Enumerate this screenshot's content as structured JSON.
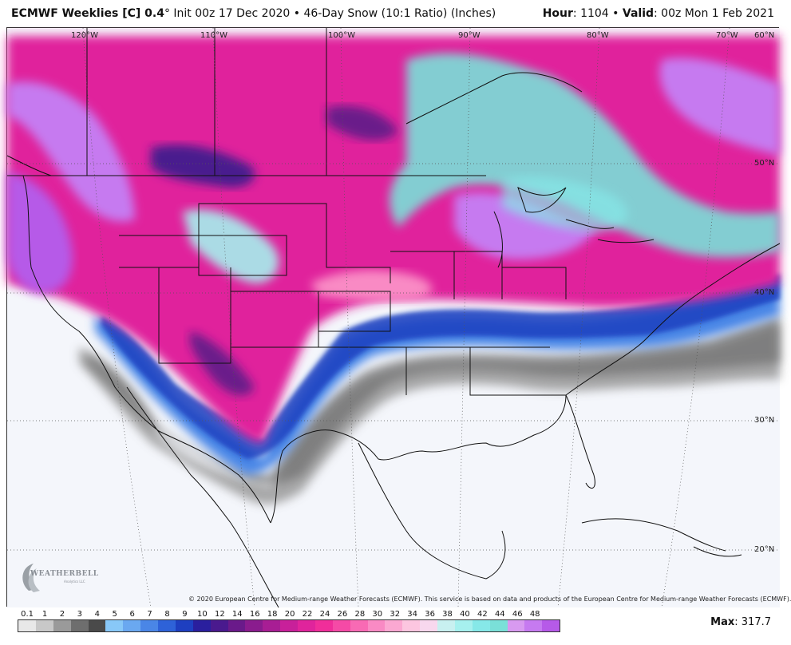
{
  "header": {
    "model": "ECMWF Weeklies [C] 0.4",
    "degree": "°",
    "init": " Init 00z 17 Dec 2020 • 46-Day Snow (10:1 Ratio) (Inches)",
    "hour_label": "Hour",
    "hour_value": ": 1104 • ",
    "valid_label": "Valid",
    "valid_value": ": 00z Mon 1 Feb 2021"
  },
  "longitude_labels": [
    "120°W",
    "110°W",
    "100°W",
    "90°W",
    "80°W",
    "70°W"
  ],
  "latitude_labels": [
    "60°N",
    "50°N",
    "40°N",
    "30°N",
    "20°N"
  ],
  "copyright": "© 2020 European Centre for Medium-range Weather Forecasts (ECMWF). This service is based on data and products of the European Centre for Medium-range Weather Forecasts (ECMWF).",
  "logo": {
    "text": "WEATHERBELL",
    "sub": "Analytics LLC"
  },
  "colorbar": {
    "labels": [
      "0.1",
      "1",
      "2",
      "3",
      "4",
      "5",
      "6",
      "7",
      "8",
      "9",
      "10",
      "12",
      "14",
      "16",
      "18",
      "20",
      "22",
      "24",
      "26",
      "28",
      "30",
      "32",
      "34",
      "36",
      "38",
      "40",
      "42",
      "44",
      "46",
      "48"
    ],
    "colors": [
      "#e8e8e8",
      "#c8c8c8",
      "#9a9a9a",
      "#6e6e6e",
      "#4a4a4a",
      "#88c8f8",
      "#6aa8f0",
      "#4a86e6",
      "#2e62d8",
      "#1e3fc0",
      "#2a1f9e",
      "#4a1a8e",
      "#6a1a8a",
      "#8a1c8e",
      "#a81e94",
      "#c8209a",
      "#e0249c",
      "#f02e9a",
      "#f54aa6",
      "#f86ab4",
      "#f98ac4",
      "#fba8d2",
      "#fcc6e0",
      "#f8d8ee",
      "#c8f0f0",
      "#a6f0ee",
      "#86e8e8",
      "#7ae0d8",
      "#d89af0",
      "#c67af0",
      "#b65ae8"
    ],
    "max_label": "Max",
    "max_value": ": 317.7"
  }
}
